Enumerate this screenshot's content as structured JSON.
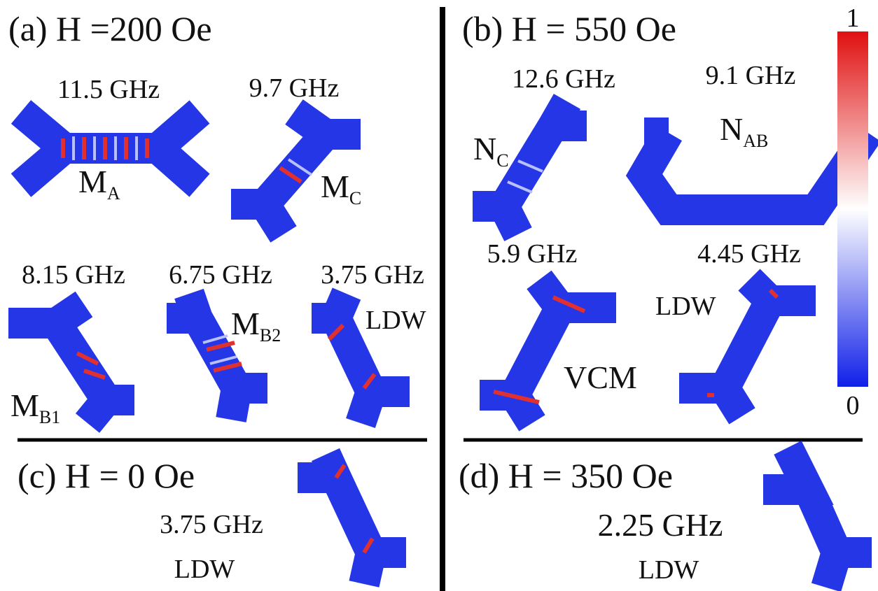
{
  "panels": {
    "a": {
      "title": "(a) H =200 Oe",
      "modes": [
        {
          "freq": "11.5 GHz",
          "label": "M",
          "sub": "A"
        },
        {
          "freq": "9.7 GHz",
          "label": "M",
          "sub": "C"
        },
        {
          "freq": "8.15 GHz",
          "label": "M",
          "sub": "B1"
        },
        {
          "freq": "6.75 GHz",
          "label": "M",
          "sub": "B2"
        },
        {
          "freq": "3.75 GHz",
          "label": "LDW"
        }
      ]
    },
    "b": {
      "title": "(b) H = 550 Oe",
      "modes": [
        {
          "freq": "12.6 GHz",
          "label": "N",
          "sub": "C"
        },
        {
          "freq": "9.1 GHz",
          "label": "N",
          "sub": "AB"
        },
        {
          "freq": "5.9 GHz",
          "label": "VCM"
        },
        {
          "freq": "4.45 GHz",
          "label": "LDW"
        }
      ]
    },
    "c": {
      "title": "(c) H = 0 Oe",
      "modes": [
        {
          "freq": "3.75 GHz",
          "label": "LDW"
        }
      ]
    },
    "d": {
      "title": "(d) H = 350 Oe",
      "modes": [
        {
          "freq": "2.25 GHz",
          "label": "LDW"
        }
      ]
    }
  },
  "colorbar": {
    "max": "1",
    "min": "0"
  }
}
